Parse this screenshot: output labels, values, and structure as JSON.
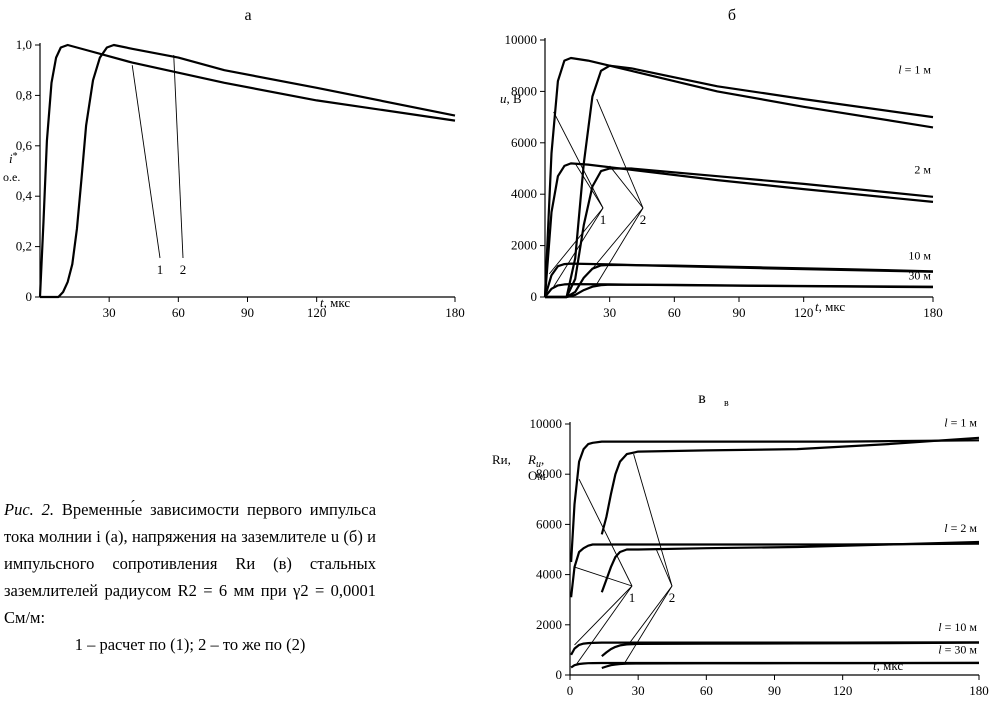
{
  "caption": {
    "label": "Рис. 2.",
    "text": "Временны́е зависимости первого импульса тока молнии i (а), напряжения на заземлителе u (б) и импульсного сопротивления Rи (в) стальных заземлителей радиусом R2 = 6 мм при γ2 = 0,0001 См/м:",
    "conditions": "1 – расчет по (1); 2 – то же по (2)"
  },
  "chart_data": [
    {
      "panel": "a",
      "type": "line",
      "title": "а",
      "ylabel_main": "i",
      "ylabel_sub": "*",
      "ylabel_unit": "о.е.",
      "xlabel_var": "t",
      "xlabel_unit": ", мкс",
      "xlim": [
        0,
        180
      ],
      "ylim": [
        0,
        1.0
      ],
      "xticks": [
        30,
        60,
        90,
        120,
        180
      ],
      "yticks": [
        0,
        0.2,
        0.4,
        0.6,
        0.8,
        1.0
      ],
      "ytick_labels": [
        "0",
        "0,2",
        "0,4",
        "0,6",
        "0,8",
        "1,0"
      ],
      "callouts": [
        "1",
        "2"
      ],
      "series": [
        {
          "name": "1",
          "x": [
            0,
            1.5,
            3,
            5,
            7,
            9,
            12,
            20,
            40,
            80,
            120,
            180
          ],
          "y": [
            0,
            0.3,
            0.62,
            0.85,
            0.95,
            0.99,
            1.0,
            0.98,
            0.93,
            0.85,
            0.78,
            0.7
          ]
        },
        {
          "name": "2",
          "x": [
            0,
            8,
            10,
            12,
            14,
            16,
            18,
            20,
            23,
            26,
            29,
            32,
            40,
            60,
            80,
            120,
            180
          ],
          "y": [
            0,
            0,
            0.02,
            0.06,
            0.13,
            0.27,
            0.47,
            0.68,
            0.86,
            0.95,
            0.99,
            1.0,
            0.985,
            0.95,
            0.9,
            0.83,
            0.72
          ]
        }
      ]
    },
    {
      "panel": "b",
      "type": "line",
      "title": "б",
      "ylabel_main": "u",
      "ylabel_unit": ", В",
      "xlabel_var": "t",
      "xlabel_unit": ", мкс",
      "xlim": [
        0,
        180
      ],
      "ylim": [
        0,
        10000
      ],
      "xticks": [
        30,
        60,
        90,
        120,
        180
      ],
      "yticks": [
        0,
        2000,
        4000,
        6000,
        8000,
        10000
      ],
      "ytick_labels": [
        "0",
        "2000",
        "4000",
        "6000",
        "8000",
        "10000"
      ],
      "callouts": [
        "1",
        "2"
      ],
      "group_labels": [
        {
          "text": "l = 1 м",
          "var": "l",
          "rest": " = 1 м",
          "at": [
            180,
            8700
          ]
        },
        {
          "text": "2 м",
          "var": "",
          "rest": "2 м",
          "at": [
            180,
            4800
          ]
        },
        {
          "text": "10 м",
          "var": "",
          "rest": "10 м",
          "at": [
            180,
            1450
          ]
        },
        {
          "text": "30 м",
          "var": "",
          "rest": "30 м",
          "at": [
            180,
            680
          ]
        }
      ],
      "series": [
        {
          "name": "1",
          "group": "1 м",
          "x": [
            0,
            3,
            6,
            9,
            12,
            20,
            40,
            80,
            120,
            180
          ],
          "y": [
            0,
            5600,
            8400,
            9200,
            9300,
            9200,
            8800,
            8000,
            7400,
            6600
          ]
        },
        {
          "name": "2",
          "group": "1 м",
          "x": [
            0,
            10,
            14,
            18,
            22,
            26,
            30,
            40,
            80,
            120,
            180
          ],
          "y": [
            0,
            0,
            1500,
            5200,
            7800,
            8800,
            9000,
            8900,
            8200,
            7700,
            7000
          ]
        },
        {
          "name": "1",
          "group": "2 м",
          "x": [
            0,
            3,
            6,
            9,
            12,
            20,
            40,
            80,
            120,
            180
          ],
          "y": [
            0,
            3300,
            4700,
            5100,
            5200,
            5150,
            4950,
            4550,
            4200,
            3700
          ]
        },
        {
          "name": "2",
          "group": "2 м",
          "x": [
            0,
            10,
            14,
            18,
            22,
            26,
            30,
            40,
            80,
            120,
            180
          ],
          "y": [
            0,
            0,
            700,
            2800,
            4300,
            4900,
            5000,
            5000,
            4700,
            4400,
            3900
          ]
        },
        {
          "name": "1",
          "group": "10 м",
          "x": [
            0,
            3,
            6,
            9,
            12,
            30,
            60,
            100,
            140,
            180
          ],
          "y": [
            0,
            850,
            1200,
            1280,
            1300,
            1270,
            1200,
            1120,
            1050,
            980
          ]
        },
        {
          "name": "2",
          "group": "10 м",
          "x": [
            0,
            10,
            14,
            18,
            22,
            26,
            30,
            60,
            100,
            140,
            180
          ],
          "y": [
            0,
            0,
            200,
            750,
            1100,
            1230,
            1250,
            1220,
            1150,
            1080,
            1000
          ]
        },
        {
          "name": "1",
          "group": "30 м",
          "x": [
            0,
            3,
            6,
            9,
            12,
            30,
            60,
            100,
            140,
            180
          ],
          "y": [
            0,
            320,
            450,
            490,
            500,
            490,
            460,
            430,
            410,
            380
          ]
        },
        {
          "name": "2",
          "group": "30 м",
          "x": [
            0,
            10,
            14,
            18,
            22,
            26,
            30,
            60,
            100,
            140,
            180
          ],
          "y": [
            0,
            0,
            80,
            270,
            400,
            460,
            480,
            470,
            440,
            420,
            400
          ]
        }
      ]
    },
    {
      "panel": "c",
      "type": "line",
      "title": "в",
      "title_small": "в",
      "ylabel_main": "Rи,",
      "ylabel_second": "R",
      "ylabel_second_sub": "u",
      "ylabel_unit": "Ом",
      "xlabel_var": "t",
      "xlabel_unit": ", мкс",
      "xlim": [
        0,
        180
      ],
      "ylim": [
        0,
        10000
      ],
      "xticks": [
        0,
        30,
        60,
        90,
        120,
        180
      ],
      "yticks": [
        0,
        2000,
        4000,
        6000,
        8000,
        10000
      ],
      "ytick_labels": [
        "0",
        "2000",
        "4000",
        "6000",
        "8000",
        "10000"
      ],
      "callouts": [
        "1",
        "2"
      ],
      "group_labels": [
        {
          "text": "l = 1 м",
          "var": "l",
          "rest": " = 1 м",
          "at": [
            180,
            9900
          ]
        },
        {
          "text": "l = 2 м",
          "var": "l",
          "rest": " = 2 м",
          "at": [
            180,
            5700
          ]
        },
        {
          "text": "l = 10 м",
          "var": "l",
          "rest": " = 10 м",
          "at": [
            180,
            1750
          ]
        },
        {
          "text": "l = 30 м",
          "var": "l",
          "rest": " = 30 м",
          "at": [
            180,
            850
          ]
        }
      ],
      "series": [
        {
          "name": "1",
          "group": "1 м",
          "x": [
            0.5,
            2,
            4,
            6,
            8,
            10,
            14,
            20,
            60,
            120,
            180
          ],
          "y": [
            4500,
            6800,
            8500,
            9000,
            9200,
            9250,
            9300,
            9300,
            9300,
            9300,
            9350
          ]
        },
        {
          "name": "2",
          "group": "1 м",
          "x": [
            14,
            16,
            18,
            20,
            22,
            25,
            30,
            60,
            100,
            140,
            180
          ],
          "y": [
            5600,
            6300,
            7200,
            8000,
            8500,
            8800,
            8900,
            8950,
            9000,
            9200,
            9450
          ]
        },
        {
          "name": "1",
          "group": "2 м",
          "x": [
            0.5,
            2,
            4,
            6,
            8,
            10,
            14,
            20,
            60,
            120,
            180
          ],
          "y": [
            3100,
            4300,
            4900,
            5050,
            5150,
            5200,
            5200,
            5200,
            5200,
            5200,
            5230
          ]
        },
        {
          "name": "2",
          "group": "2 м",
          "x": [
            14,
            16,
            18,
            20,
            22,
            25,
            30,
            60,
            100,
            140,
            180
          ],
          "y": [
            3300,
            3800,
            4300,
            4700,
            4900,
            5000,
            5000,
            5050,
            5100,
            5200,
            5300
          ]
        },
        {
          "name": "1",
          "group": "10 м",
          "x": [
            0.5,
            2,
            4,
            6,
            8,
            10,
            14,
            20,
            60,
            120,
            180
          ],
          "y": [
            800,
            1050,
            1200,
            1250,
            1270,
            1280,
            1290,
            1290,
            1290,
            1290,
            1300
          ]
        },
        {
          "name": "2",
          "group": "10 м",
          "x": [
            14,
            16,
            18,
            20,
            22,
            25,
            30,
            60,
            100,
            140,
            180
          ],
          "y": [
            750,
            900,
            1030,
            1120,
            1180,
            1220,
            1240,
            1250,
            1260,
            1270,
            1290
          ]
        },
        {
          "name": "1",
          "group": "30 м",
          "x": [
            0.5,
            2,
            4,
            6,
            8,
            10,
            14,
            20,
            60,
            120,
            180
          ],
          "y": [
            300,
            390,
            440,
            460,
            470,
            475,
            480,
            480,
            480,
            480,
            485
          ]
        },
        {
          "name": "2",
          "group": "30 м",
          "x": [
            14,
            16,
            18,
            20,
            22,
            25,
            30,
            60,
            100,
            140,
            180
          ],
          "y": [
            280,
            340,
            390,
            420,
            440,
            455,
            460,
            465,
            470,
            475,
            480
          ]
        }
      ]
    }
  ]
}
